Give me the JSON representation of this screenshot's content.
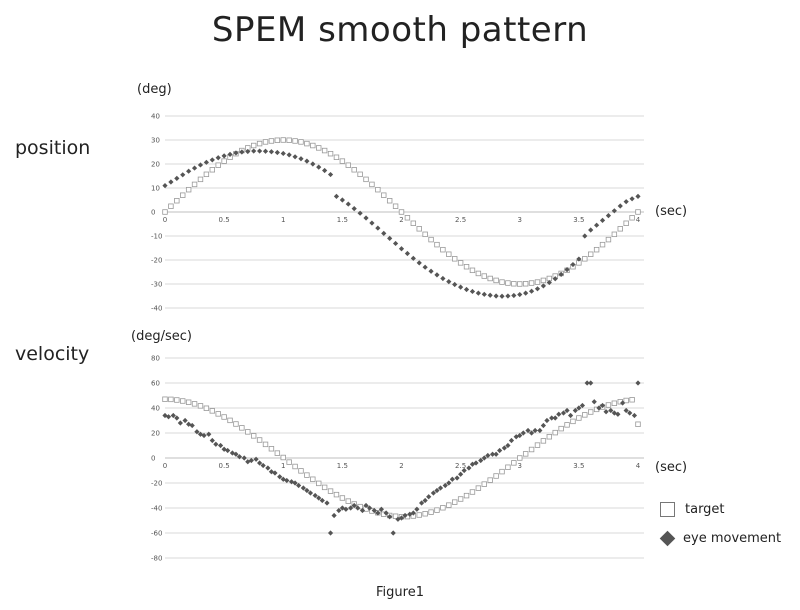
{
  "title": "SPEM smooth pattern",
  "caption": "Figure1",
  "legend": {
    "target": "target",
    "eye": "eye movement"
  },
  "colors": {
    "target": "#ffffff",
    "target_stroke": "#999999",
    "eye": "#555555"
  },
  "chart_data": [
    {
      "type": "scatter",
      "panel_label": "position",
      "ylabel": "(deg)",
      "xlabel": "(sec)",
      "xlim": [
        0,
        4
      ],
      "ylim": [
        -40,
        40
      ],
      "xticks": [
        0,
        0.5,
        1,
        1.5,
        2,
        2.5,
        3,
        3.5,
        4
      ],
      "xtick_labels": [
        "0",
        "0.5",
        "1",
        "1.5",
        "2",
        "2.5",
        "3",
        "3.5",
        "4"
      ],
      "yticks": [
        40,
        30,
        20,
        10,
        0,
        -10,
        -20,
        -30,
        -40
      ],
      "grid": true,
      "series": [
        {
          "name": "target",
          "x": [
            0,
            0.05,
            0.1,
            0.15,
            0.2,
            0.25,
            0.3,
            0.35,
            0.4,
            0.45,
            0.5,
            0.55,
            0.6,
            0.65,
            0.7,
            0.75,
            0.8,
            0.85,
            0.9,
            0.95,
            1,
            1.05,
            1.1,
            1.15,
            1.2,
            1.25,
            1.3,
            1.35,
            1.4,
            1.45,
            1.5,
            1.55,
            1.6,
            1.65,
            1.7,
            1.75,
            1.8,
            1.85,
            1.9,
            1.95,
            2,
            2.05,
            2.1,
            2.15,
            2.2,
            2.25,
            2.3,
            2.35,
            2.4,
            2.45,
            2.5,
            2.55,
            2.6,
            2.65,
            2.7,
            2.75,
            2.8,
            2.85,
            2.9,
            2.95,
            3,
            3.05,
            3.1,
            3.15,
            3.2,
            3.25,
            3.3,
            3.35,
            3.4,
            3.45,
            3.5,
            3.55,
            3.6,
            3.65,
            3.7,
            3.75,
            3.8,
            3.85,
            3.9,
            3.95,
            4
          ],
          "y": [
            0,
            2.4,
            4.7,
            7,
            9.3,
            11.5,
            13.6,
            15.7,
            17.6,
            19.5,
            21.2,
            22.8,
            24.3,
            25.6,
            26.7,
            27.7,
            28.5,
            29.2,
            29.6,
            29.9,
            30,
            29.9,
            29.6,
            29.2,
            28.5,
            27.7,
            26.7,
            25.6,
            24.3,
            22.8,
            21.2,
            19.5,
            17.6,
            15.7,
            13.6,
            11.5,
            9.3,
            7,
            4.7,
            2.4,
            0,
            -2.4,
            -4.7,
            -7,
            -9.3,
            -11.5,
            -13.6,
            -15.7,
            -17.6,
            -19.5,
            -21.2,
            -22.8,
            -24.3,
            -25.6,
            -26.7,
            -27.7,
            -28.5,
            -29.2,
            -29.6,
            -29.9,
            -30,
            -29.9,
            -29.6,
            -29.2,
            -28.5,
            -27.7,
            -26.7,
            -25.6,
            -24.3,
            -22.8,
            -21.2,
            -19.5,
            -17.6,
            -15.7,
            -13.6,
            -11.5,
            -9.3,
            -7,
            -4.7,
            -2.4,
            0
          ]
        },
        {
          "name": "eye movement",
          "x": [
            0,
            0.05,
            0.1,
            0.15,
            0.2,
            0.25,
            0.3,
            0.35,
            0.4,
            0.45,
            0.5,
            0.55,
            0.6,
            0.65,
            0.7,
            0.75,
            0.8,
            0.85,
            0.9,
            0.95,
            1,
            1.05,
            1.1,
            1.15,
            1.2,
            1.25,
            1.3,
            1.35,
            1.4,
            1.45,
            1.5,
            1.55,
            1.6,
            1.65,
            1.7,
            1.75,
            1.8,
            1.85,
            1.9,
            1.95,
            2,
            2.05,
            2.1,
            2.15,
            2.2,
            2.25,
            2.3,
            2.35,
            2.4,
            2.45,
            2.5,
            2.55,
            2.6,
            2.65,
            2.7,
            2.75,
            2.8,
            2.85,
            2.9,
            2.95,
            3,
            3.05,
            3.1,
            3.15,
            3.2,
            3.25,
            3.3,
            3.35,
            3.4,
            3.45,
            3.5,
            3.55,
            3.6,
            3.65,
            3.7,
            3.75,
            3.8,
            3.85,
            3.9,
            3.95,
            4
          ],
          "y": [
            11,
            12.5,
            14,
            15.5,
            17,
            18.3,
            19.6,
            20.7,
            21.7,
            22.6,
            23.4,
            24,
            24.6,
            25,
            25.2,
            25.4,
            25.4,
            25.3,
            25.1,
            24.8,
            24.4,
            23.8,
            23,
            22.2,
            21.2,
            20,
            18.7,
            17.3,
            15.6,
            6.5,
            5,
            3.3,
            1.4,
            -0.5,
            -2.5,
            -4.6,
            -6.7,
            -8.9,
            -11,
            -13.1,
            -15.3,
            -17.3,
            -19.3,
            -21.2,
            -23,
            -24.7,
            -26.2,
            -27.7,
            -29,
            -30.2,
            -31.3,
            -32.3,
            -33.1,
            -33.8,
            -34.3,
            -34.7,
            -35,
            -35.1,
            -35,
            -34.8,
            -34.4,
            -33.8,
            -33,
            -32,
            -30.8,
            -29.4,
            -27.8,
            -26,
            -24,
            -21.9,
            -19.6,
            -10,
            -7.5,
            -5.5,
            -3.5,
            -1.5,
            0.5,
            2.5,
            4.3,
            5.5,
            6.5
          ]
        }
      ]
    },
    {
      "type": "scatter",
      "panel_label": "velocity",
      "ylabel": "(deg/sec)",
      "xlabel": "(sec)",
      "xlim": [
        0,
        4
      ],
      "ylim": [
        -80,
        80
      ],
      "xticks": [
        0,
        0.5,
        1,
        1.5,
        2,
        2.5,
        3,
        3.5,
        4
      ],
      "xtick_labels": [
        "0",
        "0.5",
        "1",
        "1.5",
        "2",
        "2.5",
        "3",
        "3.5",
        "4"
      ],
      "yticks": [
        80,
        60,
        40,
        20,
        0,
        -20,
        -40,
        -60,
        -80
      ],
      "grid": true,
      "series": [
        {
          "name": "target",
          "x": [
            0,
            0.05,
            0.1,
            0.15,
            0.2,
            0.25,
            0.3,
            0.35,
            0.4,
            0.45,
            0.5,
            0.55,
            0.6,
            0.65,
            0.7,
            0.75,
            0.8,
            0.85,
            0.9,
            0.95,
            1,
            1.05,
            1.1,
            1.15,
            1.2,
            1.25,
            1.3,
            1.35,
            1.4,
            1.45,
            1.5,
            1.55,
            1.6,
            1.65,
            1.7,
            1.75,
            1.8,
            1.85,
            1.9,
            1.95,
            2,
            2.05,
            2.1,
            2.15,
            2.2,
            2.25,
            2.3,
            2.35,
            2.4,
            2.45,
            2.5,
            2.55,
            2.6,
            2.65,
            2.7,
            2.75,
            2.8,
            2.85,
            2.9,
            2.95,
            3,
            3.05,
            3.1,
            3.15,
            3.2,
            3.25,
            3.3,
            3.35,
            3.4,
            3.45,
            3.5,
            3.55,
            3.6,
            3.65,
            3.7,
            3.75,
            3.8,
            3.85,
            3.9,
            3.95,
            4
          ],
          "y": [
            47,
            46.9,
            46.4,
            45.6,
            44.6,
            43.3,
            41.7,
            39.8,
            37.7,
            35.3,
            32.8,
            30.1,
            27.2,
            24.1,
            20.9,
            17.7,
            14.4,
            10.9,
            7.4,
            3.9,
            0.4,
            -3.3,
            -6.8,
            -10.3,
            -13.7,
            -17,
            -20.3,
            -23.5,
            -26.5,
            -29.3,
            -32,
            -34.5,
            -36.8,
            -38.9,
            -40.8,
            -42.4,
            -43.8,
            -45,
            -46,
            -46.6,
            -47,
            -46.9,
            -46.4,
            -45.6,
            -44.6,
            -43.3,
            -41.7,
            -39.8,
            -37.7,
            -35.3,
            -32.8,
            -30.1,
            -27.2,
            -24.1,
            -20.9,
            -17.7,
            -14.4,
            -10.9,
            -7.4,
            -3.9,
            0,
            3.3,
            6.8,
            10.3,
            13.7,
            17,
            20.3,
            23.5,
            26.5,
            29.3,
            32,
            34.5,
            36.8,
            38.9,
            40.8,
            42.4,
            43.8,
            45,
            46,
            46.6,
            27
          ]
        },
        {
          "name": "eye movement",
          "x": [
            0,
            0.03,
            0.07,
            0.1,
            0.13,
            0.17,
            0.2,
            0.23,
            0.27,
            0.3,
            0.33,
            0.37,
            0.4,
            0.43,
            0.47,
            0.5,
            0.53,
            0.57,
            0.6,
            0.63,
            0.67,
            0.7,
            0.73,
            0.77,
            0.8,
            0.83,
            0.87,
            0.9,
            0.93,
            0.97,
            1,
            1.03,
            1.07,
            1.1,
            1.13,
            1.17,
            1.2,
            1.23,
            1.27,
            1.3,
            1.33,
            1.37,
            1.4,
            1.43,
            1.47,
            1.5,
            1.53,
            1.57,
            1.6,
            1.63,
            1.67,
            1.7,
            1.73,
            1.77,
            1.8,
            1.83,
            1.87,
            1.9,
            1.93,
            1.97,
            2,
            2.03,
            2.07,
            2.1,
            2.13,
            2.17,
            2.2,
            2.23,
            2.27,
            2.3,
            2.33,
            2.37,
            2.4,
            2.43,
            2.47,
            2.5,
            2.53,
            2.57,
            2.6,
            2.63,
            2.67,
            2.7,
            2.73,
            2.77,
            2.8,
            2.83,
            2.87,
            2.9,
            2.93,
            2.97,
            3,
            3.03,
            3.07,
            3.1,
            3.13,
            3.17,
            3.2,
            3.23,
            3.27,
            3.3,
            3.33,
            3.37,
            3.4,
            3.43,
            3.47,
            3.5,
            3.53,
            3.57,
            3.6,
            3.63,
            3.67,
            3.7,
            3.73,
            3.77,
            3.8,
            3.83,
            3.87,
            3.9,
            3.93,
            3.97,
            4
          ],
          "y": [
            34,
            33,
            34,
            32,
            28,
            30,
            27,
            26,
            21,
            19,
            18,
            19,
            14,
            11,
            10,
            7,
            6,
            4,
            3,
            1,
            0,
            -3,
            -2,
            -1,
            -4,
            -6,
            -8,
            -11,
            -12,
            -15,
            -17,
            -18,
            -19,
            -20,
            -22,
            -24,
            -26,
            -28,
            -30,
            -32,
            -34,
            -36,
            -60,
            -46,
            -42,
            -40,
            -41,
            -40,
            -38,
            -40,
            -42,
            -38,
            -40,
            -42,
            -44,
            -41,
            -44,
            -47,
            -60,
            -49,
            -48,
            -46,
            -45,
            -44,
            -41,
            -36,
            -34,
            -31,
            -28,
            -26,
            -24,
            -22,
            -20,
            -17,
            -16,
            -13,
            -10,
            -8,
            -5,
            -4,
            -2,
            0,
            2,
            3,
            3,
            6,
            8,
            10,
            14,
            17,
            18,
            20,
            22,
            20,
            22,
            22,
            26,
            30,
            32,
            32,
            35,
            36,
            38,
            34,
            38,
            40,
            42,
            60,
            60,
            45,
            40,
            42,
            37,
            38,
            36,
            35,
            44,
            38,
            36,
            34,
            60
          ]
        }
      ]
    }
  ]
}
